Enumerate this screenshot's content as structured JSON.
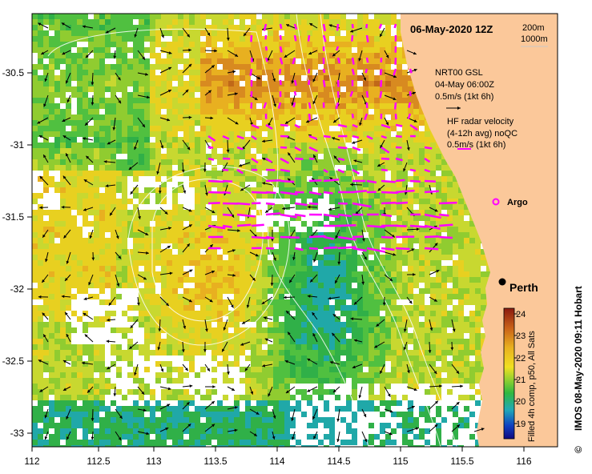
{
  "map": {
    "title": "06-May-2020 12Z",
    "depth_contours": [
      "200m",
      "1000m"
    ],
    "legend": {
      "glider_line1": "NRT00 GSL",
      "glider_line2": "04-May 06:00Z",
      "glider_line3": "0.5m/s (1kt 6h)",
      "radar_line1": "HF radar velocity",
      "radar_line2": "(4-12h avg) noQC",
      "radar_line3": "0.5m/s (1kt 6h)",
      "argo": "Argo"
    },
    "city": "Perth",
    "colorbar": {
      "label": "Filled 4h comp, p50, All Sats",
      "ticks": [
        "24",
        "23",
        "22",
        "21",
        "20",
        "19"
      ]
    },
    "credit": "IMOS 08-May-2020 09:11 Hobart",
    "copyright": "©",
    "x_ticks": [
      "112",
      "112.5",
      "113",
      "113.5",
      "114",
      "114.5",
      "115",
      "115.5",
      "116"
    ],
    "y_ticks": [
      "-30.5",
      "-31",
      "-31.5",
      "-32",
      "-32.5",
      "-33"
    ],
    "colors": {
      "land": "#fbc89a",
      "warm": "#c87820",
      "yellow": "#e8d020",
      "green": "#40c040",
      "cyan": "#20b0c0",
      "radar_arrow": "#ff00ff"
    }
  }
}
